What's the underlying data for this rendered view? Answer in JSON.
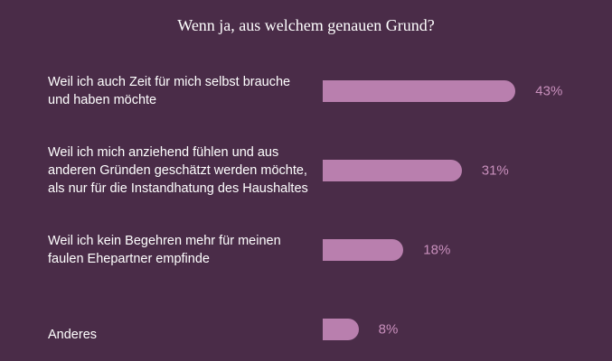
{
  "chart_data": {
    "type": "bar",
    "orientation": "horizontal",
    "title": "Wenn ja, aus welchem genauen Grund?",
    "categories": [
      "Weil ich auch Zeit für mich selbst brauche und haben möchte",
      "Weil ich mich anziehend fühlen und aus anderen Gründen geschätzt werden möchte, als nur für die Instandhatung des Haushaltes",
      "Weil ich kein Begehren mehr für meinen faulen Ehepartner empfinde",
      "Anderes"
    ],
    "values": [
      43,
      31,
      18,
      8
    ],
    "value_labels": [
      "43%",
      "31%",
      "18%",
      "8%"
    ],
    "color": "#b97fae"
  }
}
